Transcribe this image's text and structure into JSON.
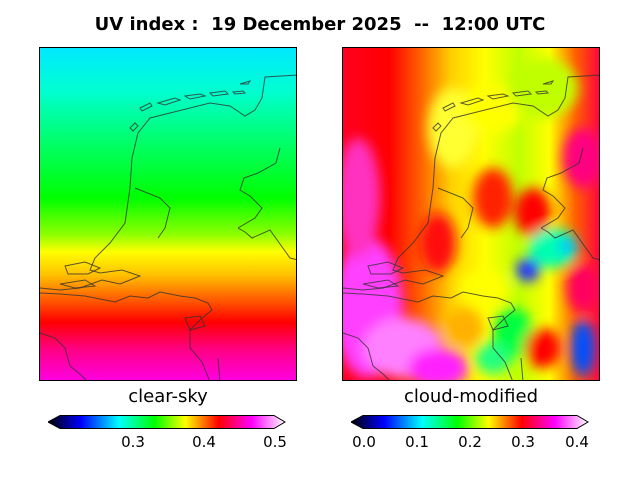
{
  "title": {
    "prefix": "UV index :",
    "date": "19 December 2025",
    "separator": "--",
    "time": "12:00 UTC"
  },
  "panels": {
    "left": {
      "label": "clear-sky",
      "colorbar": {
        "min": 0.2,
        "max": 0.5,
        "ticks": [
          "0.3",
          "0.4",
          "0.5"
        ]
      }
    },
    "right": {
      "label": "cloud-modified",
      "colorbar": {
        "min": 0.0,
        "max": 0.4,
        "ticks": [
          "0.0",
          "0.1",
          "0.2",
          "0.3",
          "0.4"
        ]
      }
    }
  },
  "colormap": [
    "#000000",
    "#0000ff",
    "#00ffff",
    "#00ff00",
    "#ffff00",
    "#ff0000",
    "#ff00ff",
    "#ffffff"
  ]
}
